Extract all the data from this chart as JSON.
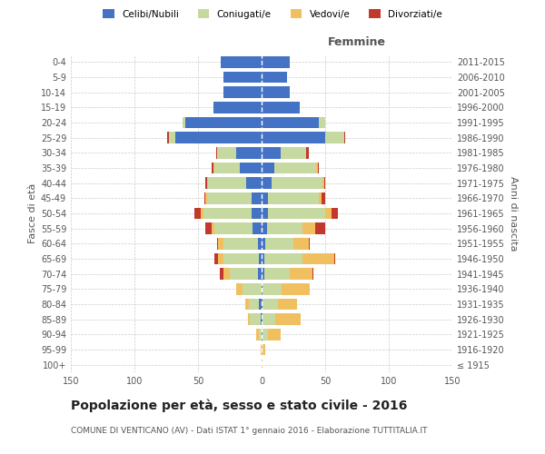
{
  "age_groups": [
    "100+",
    "95-99",
    "90-94",
    "85-89",
    "80-84",
    "75-79",
    "70-74",
    "65-69",
    "60-64",
    "55-59",
    "50-54",
    "45-49",
    "40-44",
    "35-39",
    "30-34",
    "25-29",
    "20-24",
    "15-19",
    "10-14",
    "5-9",
    "0-4"
  ],
  "birth_years": [
    "≤ 1915",
    "1916-1920",
    "1921-1925",
    "1926-1930",
    "1931-1935",
    "1936-1940",
    "1941-1945",
    "1946-1950",
    "1951-1955",
    "1956-1960",
    "1961-1965",
    "1966-1970",
    "1971-1975",
    "1976-1980",
    "1981-1985",
    "1986-1990",
    "1991-1995",
    "1996-2000",
    "2001-2005",
    "2006-2010",
    "2011-2015"
  ],
  "male": {
    "celibi": [
      0,
      0,
      0,
      1,
      2,
      0,
      3,
      2,
      3,
      7,
      8,
      8,
      12,
      17,
      20,
      68,
      60,
      38,
      30,
      30,
      32
    ],
    "coniugati": [
      0,
      0,
      2,
      8,
      8,
      15,
      22,
      28,
      27,
      30,
      38,
      35,
      30,
      20,
      15,
      5,
      2,
      0,
      0,
      0,
      0
    ],
    "vedovi": [
      0,
      1,
      2,
      2,
      3,
      5,
      5,
      4,
      4,
      2,
      2,
      1,
      1,
      1,
      0,
      0,
      0,
      0,
      0,
      0,
      0
    ],
    "divorziati": [
      0,
      0,
      0,
      0,
      0,
      0,
      3,
      3,
      1,
      5,
      5,
      1,
      1,
      1,
      1,
      1,
      0,
      0,
      0,
      0,
      0
    ]
  },
  "female": {
    "celibi": [
      0,
      0,
      1,
      1,
      1,
      1,
      2,
      2,
      3,
      4,
      5,
      5,
      8,
      10,
      15,
      50,
      45,
      30,
      22,
      20,
      22
    ],
    "coniugati": [
      0,
      1,
      4,
      10,
      12,
      15,
      20,
      30,
      22,
      28,
      45,
      40,
      40,
      33,
      20,
      15,
      5,
      0,
      0,
      0,
      0
    ],
    "vedovi": [
      1,
      2,
      10,
      20,
      15,
      22,
      18,
      25,
      12,
      10,
      5,
      2,
      1,
      1,
      0,
      0,
      0,
      0,
      0,
      0,
      0
    ],
    "divorziati": [
      0,
      0,
      0,
      0,
      0,
      0,
      1,
      1,
      1,
      8,
      5,
      3,
      1,
      1,
      2,
      1,
      0,
      0,
      0,
      0,
      0
    ]
  },
  "colors": {
    "celibi": "#4472c4",
    "coniugati": "#c5d9a0",
    "vedovi": "#f0c060",
    "divorziati": "#c0392b"
  },
  "xlim": 150,
  "title": "Popolazione per età, sesso e stato civile - 2016",
  "subtitle": "COMUNE DI VENTICANO (AV) - Dati ISTAT 1° gennaio 2016 - Elaborazione TUTTITALIA.IT",
  "ylabel_left": "Fasce di età",
  "ylabel_right": "Anni di nascita",
  "xlabel_right": "Femmine",
  "background_color": "#ffffff",
  "grid_color": "#cccccc"
}
